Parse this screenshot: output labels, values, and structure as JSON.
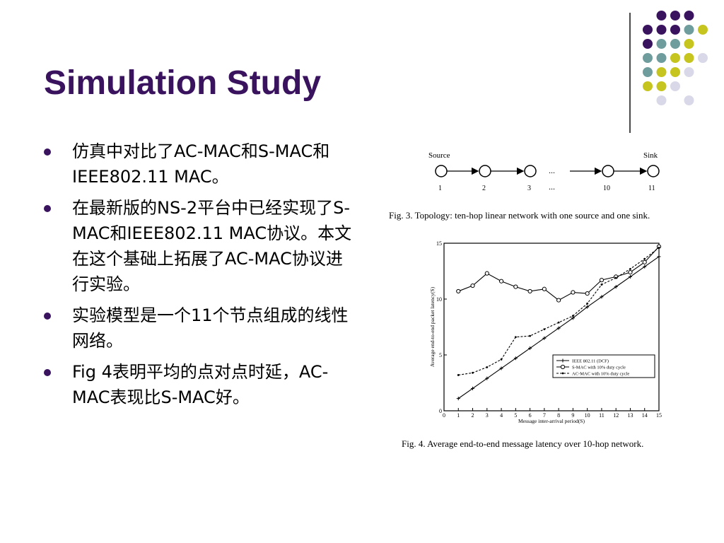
{
  "slide": {
    "title": "Simulation Study",
    "bullets": [
      "仿真中对比了AC-MAC和S-MAC和IEEE802.11 MAC。",
      "在最新版的NS-2平台中已经实现了S-MAC和IEEE802.11 MAC协议。本文在这个基础上拓展了AC-MAC协议进行实验。",
      "实验模型是一个11个节点组成的线性网络。",
      "Fig 4表明平均的点对点时延，AC-MAC表现比S-MAC好。"
    ],
    "colors": {
      "title": "#3a135e",
      "purple": "#3a135e",
      "teal": "#6f9c9c",
      "olive": "#c6c41e",
      "lavender": "#d8d8e8"
    }
  },
  "fig3": {
    "source_label": "Source",
    "sink_label": "Sink",
    "node_labels": [
      "1",
      "2",
      "3",
      "10",
      "11"
    ],
    "ellipsis": "...",
    "caption": "Fig. 3.    Topology: ten-hop linear network with one source and one sink."
  },
  "chart_data": {
    "type": "line",
    "title": "",
    "xlabel": "Message inter-arrival period(S)",
    "ylabel": "Average end-to-end packet latency(S)",
    "xlim": [
      0,
      15
    ],
    "ylim": [
      0,
      15
    ],
    "x_ticks": [
      0,
      1,
      2,
      3,
      4,
      5,
      6,
      7,
      8,
      9,
      10,
      11,
      12,
      13,
      14,
      15
    ],
    "y_ticks": [
      0,
      5,
      10,
      15
    ],
    "x": [
      1,
      2,
      3,
      4,
      5,
      6,
      7,
      8,
      9,
      10,
      11,
      12,
      13,
      14,
      15
    ],
    "series": [
      {
        "name": "IEEE 802.11 (DCF)",
        "marker": "plus",
        "dash": "solid",
        "values": [
          1.1,
          2.0,
          2.9,
          3.8,
          4.7,
          5.6,
          6.5,
          7.4,
          8.3,
          9.3,
          10.2,
          11.1,
          12.0,
          12.9,
          13.8
        ]
      },
      {
        "name": "S-MAC with 10% duty cycle",
        "marker": "circle",
        "dash": "solid",
        "values": [
          10.7,
          11.2,
          12.3,
          11.6,
          11.1,
          10.7,
          10.9,
          9.9,
          10.6,
          10.5,
          11.7,
          12.0,
          12.4,
          13.3,
          14.7
        ]
      },
      {
        "name": "AC-MAC with 10% duty cycle",
        "marker": "dot",
        "dash": "dashed",
        "values": [
          3.2,
          3.4,
          3.9,
          4.6,
          6.6,
          6.7,
          7.3,
          7.9,
          8.5,
          9.6,
          11.3,
          11.9,
          12.7,
          13.6,
          14.6
        ]
      }
    ],
    "legend_position": "bottom-right",
    "grid": false,
    "caption": "Fig. 4.    Average end-to-end message latency over 10-hop network."
  }
}
